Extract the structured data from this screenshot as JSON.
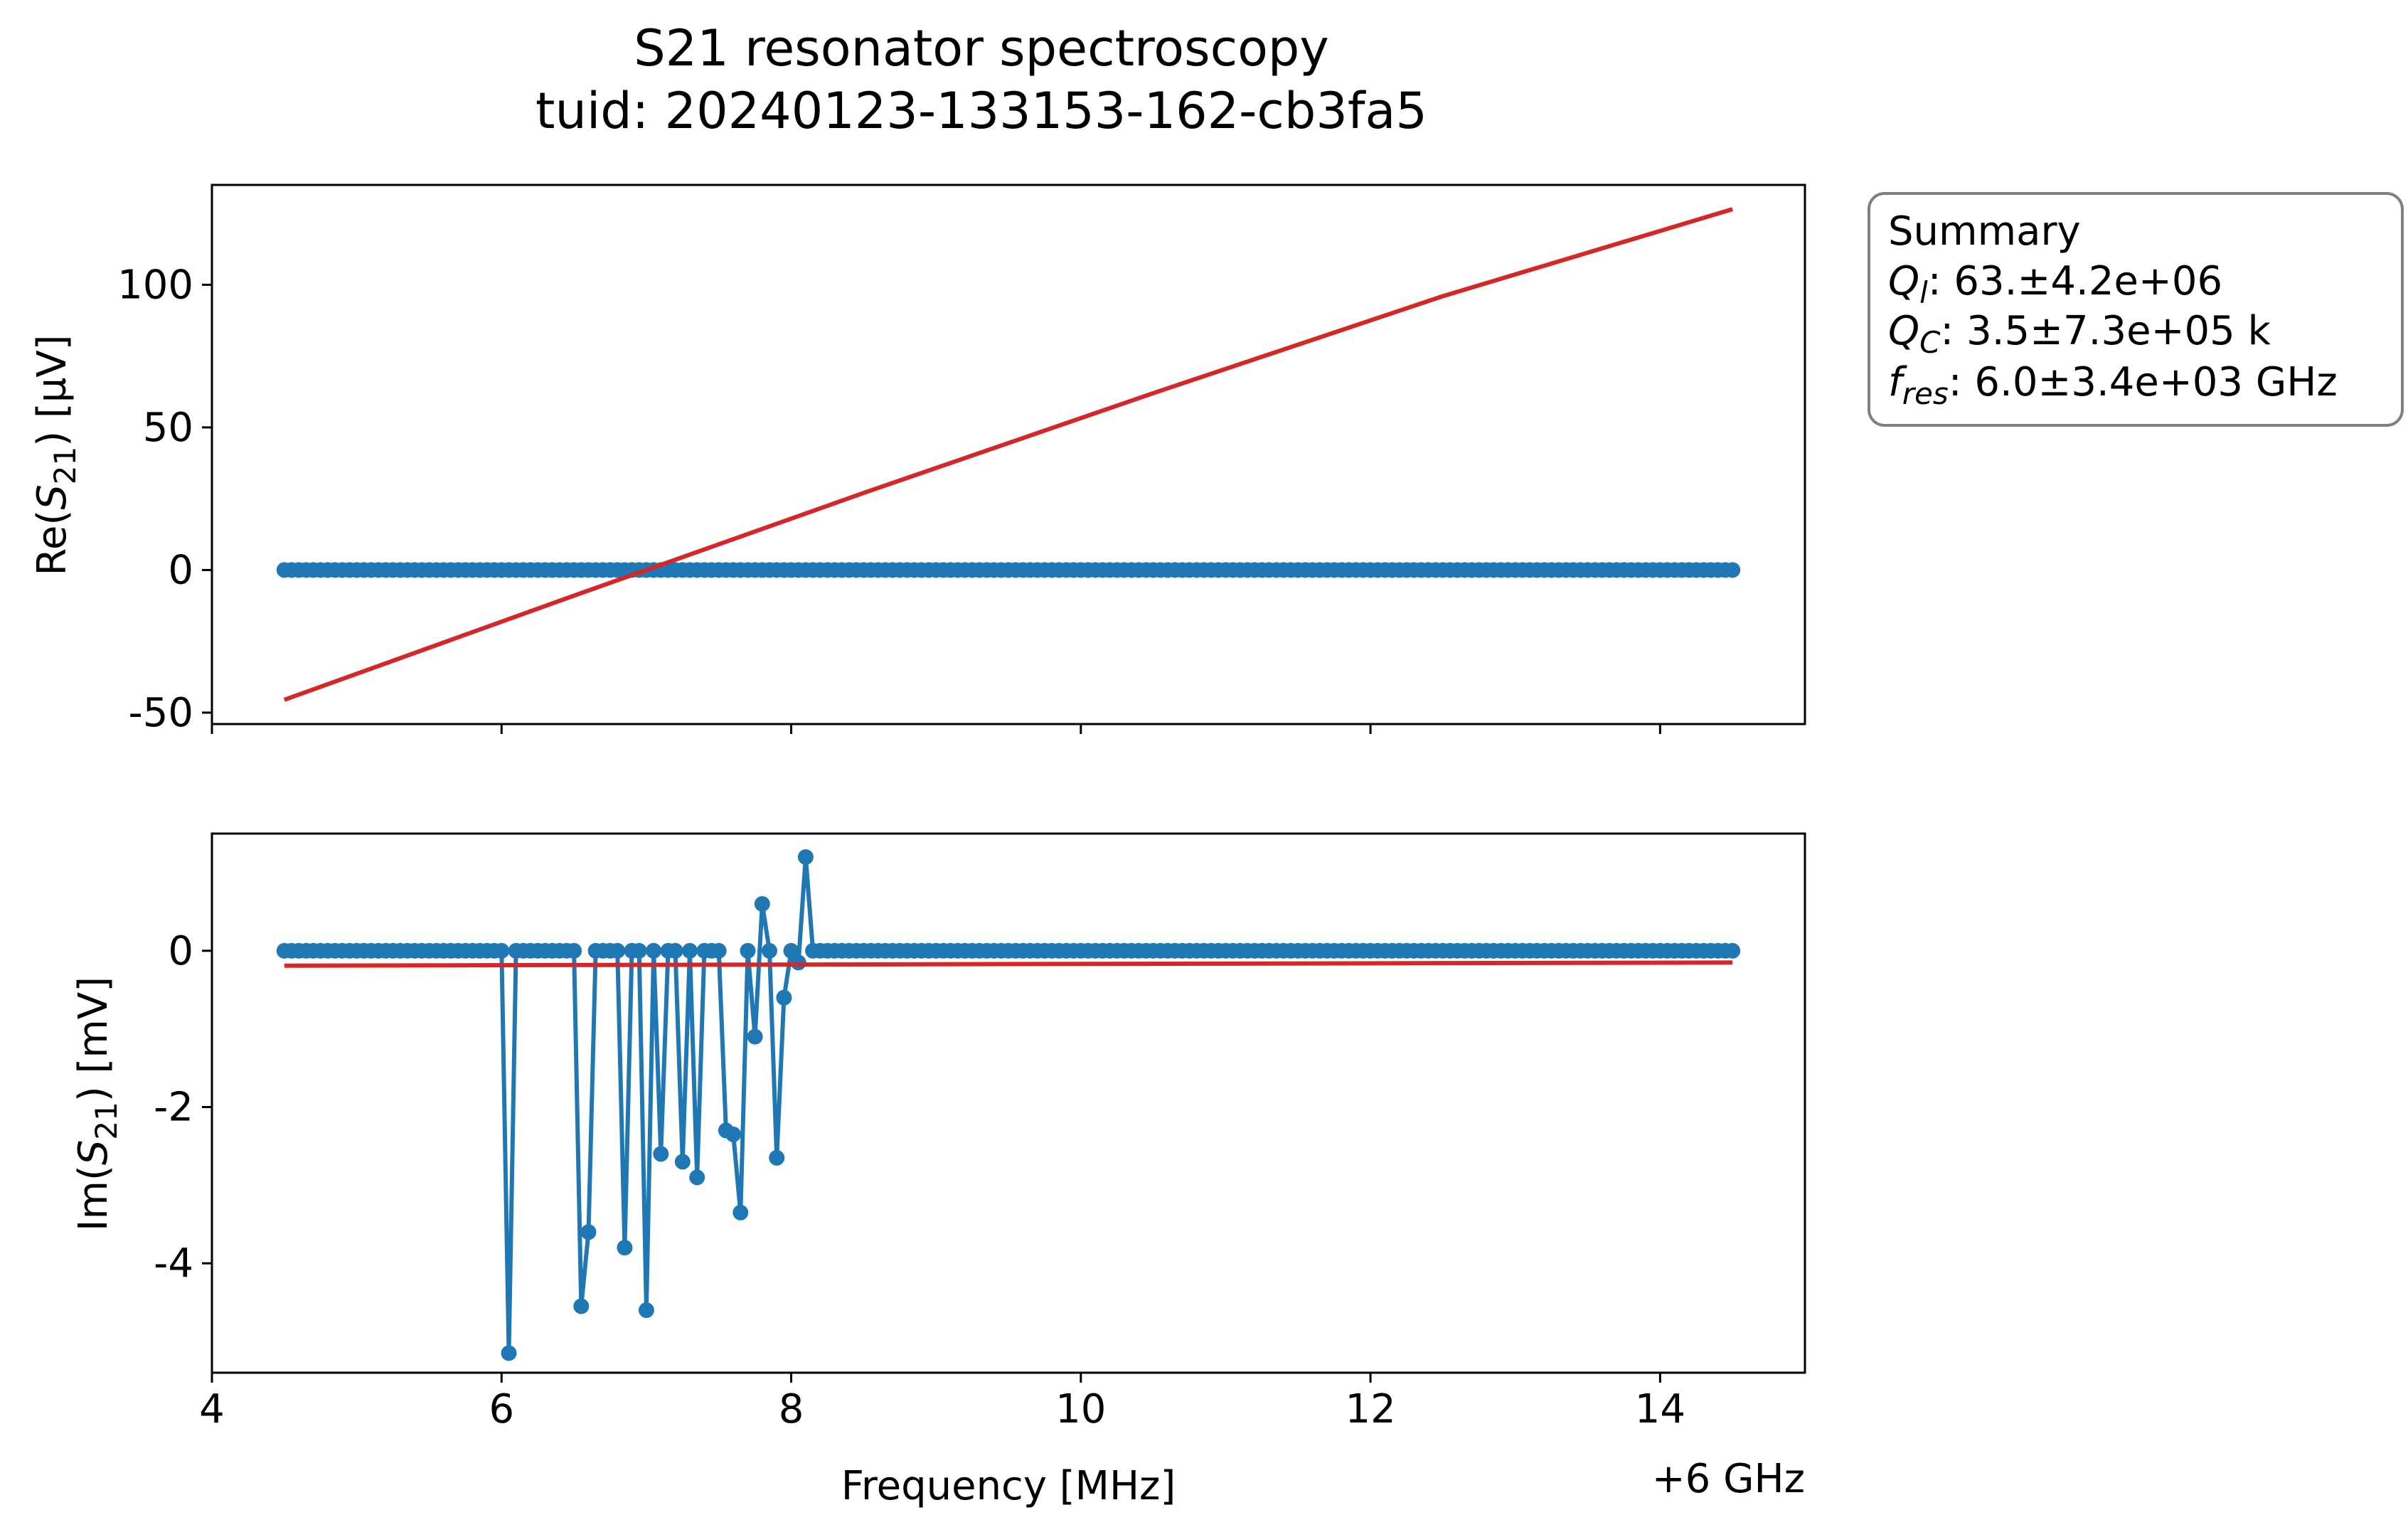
{
  "title_line1": "S21 resonator spectroscopy",
  "title_line2": "tuid: 20240123-133153-162-cb3fa5",
  "summary": {
    "heading": "Summary",
    "ql_sym": "Q",
    "ql_sub": "l",
    "ql_val": ": 63.±4.2e+06",
    "qc_sym": "Q",
    "qc_sub": "C",
    "qc_val": ": 3.5±7.3e+05 k",
    "fres_sym": "f",
    "fres_sub": "res",
    "fres_val": ": 6.0±3.4e+03 GHz"
  },
  "chart_data": [
    {
      "type": "line",
      "ylabel": {
        "prefix": "Re(",
        "sym": "S",
        "sub": "21",
        "suffix": ") [µV]"
      },
      "xlim": [
        4,
        15
      ],
      "ylim": [
        -54,
        135
      ],
      "yticks": [
        -50,
        0,
        50,
        100
      ],
      "ytick_labels": [
        "-50",
        "0",
        "50",
        "100"
      ],
      "xticks": [
        4,
        6,
        8,
        10,
        12,
        14
      ],
      "show_xtick_labels": false,
      "series": [
        {
          "role": "data",
          "color": "#1f77b4",
          "x_start": 4.5,
          "x_end": 14.5,
          "n": 201,
          "y_constant": 0
        },
        {
          "role": "fit",
          "color": "#d62728",
          "x": [
            4.5,
            6.5,
            8.5,
            10.5,
            12.5,
            14.5
          ],
          "y": [
            -45.5,
            -9,
            27,
            62,
            96,
            126.5
          ]
        }
      ]
    },
    {
      "type": "line",
      "ylabel": {
        "prefix": "Im(",
        "sym": "S",
        "sub": "21",
        "suffix": ") [mV]"
      },
      "xlabel": "Frequency [MHz]",
      "offset_label": "+6 GHz",
      "xlim": [
        4,
        15
      ],
      "ylim": [
        -5.4,
        1.5
      ],
      "yticks": [
        -4,
        -2,
        0
      ],
      "ytick_labels": [
        "-4",
        "-2",
        "0"
      ],
      "xticks": [
        4,
        6,
        8,
        10,
        12,
        14
      ],
      "xtick_labels": [
        "4",
        "6",
        "8",
        "10",
        "12",
        "14"
      ],
      "series": [
        {
          "role": "data",
          "color": "#1f77b4",
          "x_start": 4.5,
          "x_end": 14.5,
          "n": 201,
          "baseline": 0,
          "anomalies": [
            {
              "x": 6.05,
              "y": -5.15
            },
            {
              "x": 6.55,
              "y": -4.55
            },
            {
              "x": 6.6,
              "y": -3.6
            },
            {
              "x": 6.85,
              "y": -3.8
            },
            {
              "x": 7.0,
              "y": -4.6
            },
            {
              "x": 7.1,
              "y": -2.6
            },
            {
              "x": 7.25,
              "y": -2.7
            },
            {
              "x": 7.35,
              "y": -2.9
            },
            {
              "x": 7.55,
              "y": -2.3
            },
            {
              "x": 7.6,
              "y": -2.35
            },
            {
              "x": 7.65,
              "y": -3.35
            },
            {
              "x": 7.75,
              "y": -1.1
            },
            {
              "x": 7.8,
              "y": 0.6
            },
            {
              "x": 7.9,
              "y": -2.65
            },
            {
              "x": 7.95,
              "y": -0.6
            },
            {
              "x": 8.05,
              "y": -0.15
            },
            {
              "x": 8.1,
              "y": 1.2
            }
          ]
        },
        {
          "role": "fit",
          "color": "#d62728",
          "x": [
            4.5,
            14.5
          ],
          "y": [
            -0.19,
            -0.15
          ]
        }
      ]
    }
  ]
}
